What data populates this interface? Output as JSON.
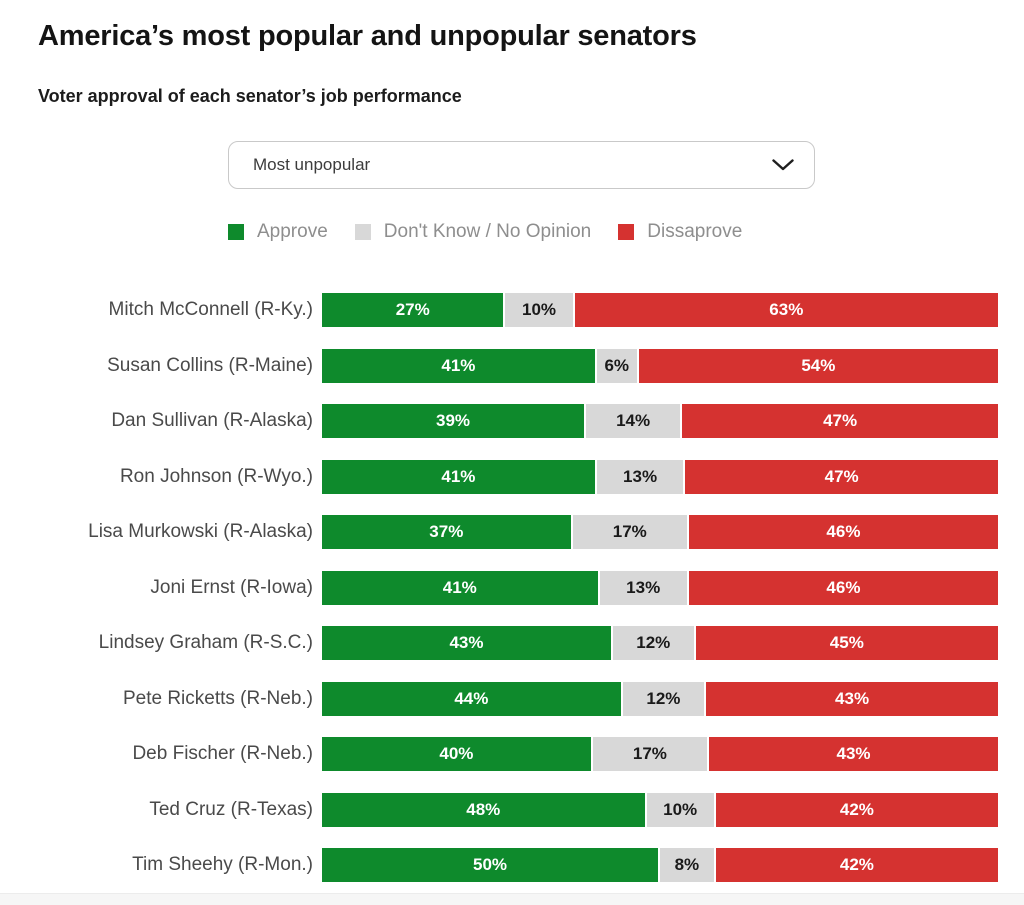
{
  "page": {
    "title": "America’s most popular and unpopular senators",
    "subtitle": "Voter approval of each senator’s job performance"
  },
  "filter": {
    "selected": "Most unpopular",
    "chevron_icon": "chevron-down"
  },
  "legend": [
    {
      "label": "Approve",
      "color": "#0e8a2c"
    },
    {
      "label": "Don't Know / No Opinion",
      "color": "#d8d8d8"
    },
    {
      "label": "Dissaprove",
      "color": "#d53230"
    }
  ],
  "chart_data": {
    "type": "bar",
    "orientation": "horizontal",
    "stacked": true,
    "value_suffix": "%",
    "xlim": [
      0,
      100
    ],
    "grid": false,
    "legend_position": "top",
    "categories": [
      "Mitch McConnell (R-Ky.)",
      "Susan Collins (R-Maine)",
      "Dan Sullivan (R-Alaska)",
      "Ron Johnson (R-Wyo.)",
      "Lisa Murkowski (R-Alaska)",
      "Joni Ernst (R-Iowa)",
      "Lindsey Graham (R-S.C.)",
      "Pete Ricketts (R-Neb.)",
      "Deb Fischer (R-Neb.)",
      "Ted Cruz (R-Texas)",
      "Tim Sheehy (R-Mon.)"
    ],
    "series": [
      {
        "name": "Approve",
        "color": "#0e8a2c",
        "label_color": "#ffffff",
        "values": [
          27,
          41,
          39,
          41,
          37,
          41,
          43,
          44,
          40,
          48,
          50
        ]
      },
      {
        "name": "Don't Know / No Opinion",
        "color": "#d8d8d8",
        "label_color": "#1a1a1a",
        "values": [
          10,
          6,
          14,
          13,
          17,
          13,
          12,
          12,
          17,
          10,
          8
        ]
      },
      {
        "name": "Dissaprove",
        "color": "#d53230",
        "label_color": "#ffffff",
        "values": [
          63,
          54,
          47,
          47,
          46,
          46,
          45,
          43,
          43,
          42,
          42
        ]
      }
    ]
  }
}
